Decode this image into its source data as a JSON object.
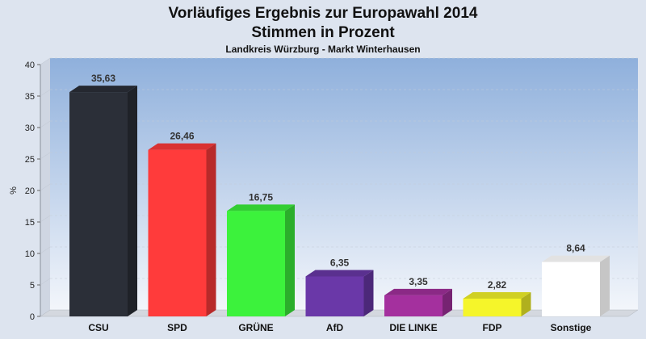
{
  "chart_data": {
    "type": "bar",
    "title": "Vorläufiges Ergebnis zur Europawahl 2014",
    "title2": "Stimmen in Prozent",
    "subtitle": "Landkreis Würzburg - Markt Winterhausen",
    "ylabel": "%",
    "ylim": [
      0,
      40
    ],
    "yticks": [
      0,
      5,
      10,
      15,
      20,
      25,
      30,
      35,
      40
    ],
    "categories": [
      "CSU",
      "SPD",
      "GRÜNE",
      "AfD",
      "DIE LINKE",
      "FDP",
      "Sonstige"
    ],
    "values": [
      35.63,
      26.46,
      16.75,
      6.35,
      3.35,
      2.82,
      8.64
    ],
    "value_labels": [
      "35,63",
      "26,46",
      "16,75",
      "6,35",
      "3,35",
      "2,82",
      "8,64"
    ],
    "colors": [
      "#2b2f38",
      "#ff3b3b",
      "#3cf23c",
      "#6a38a8",
      "#a4309e",
      "#f5f52a",
      "#ffffff"
    ],
    "grid": true
  }
}
